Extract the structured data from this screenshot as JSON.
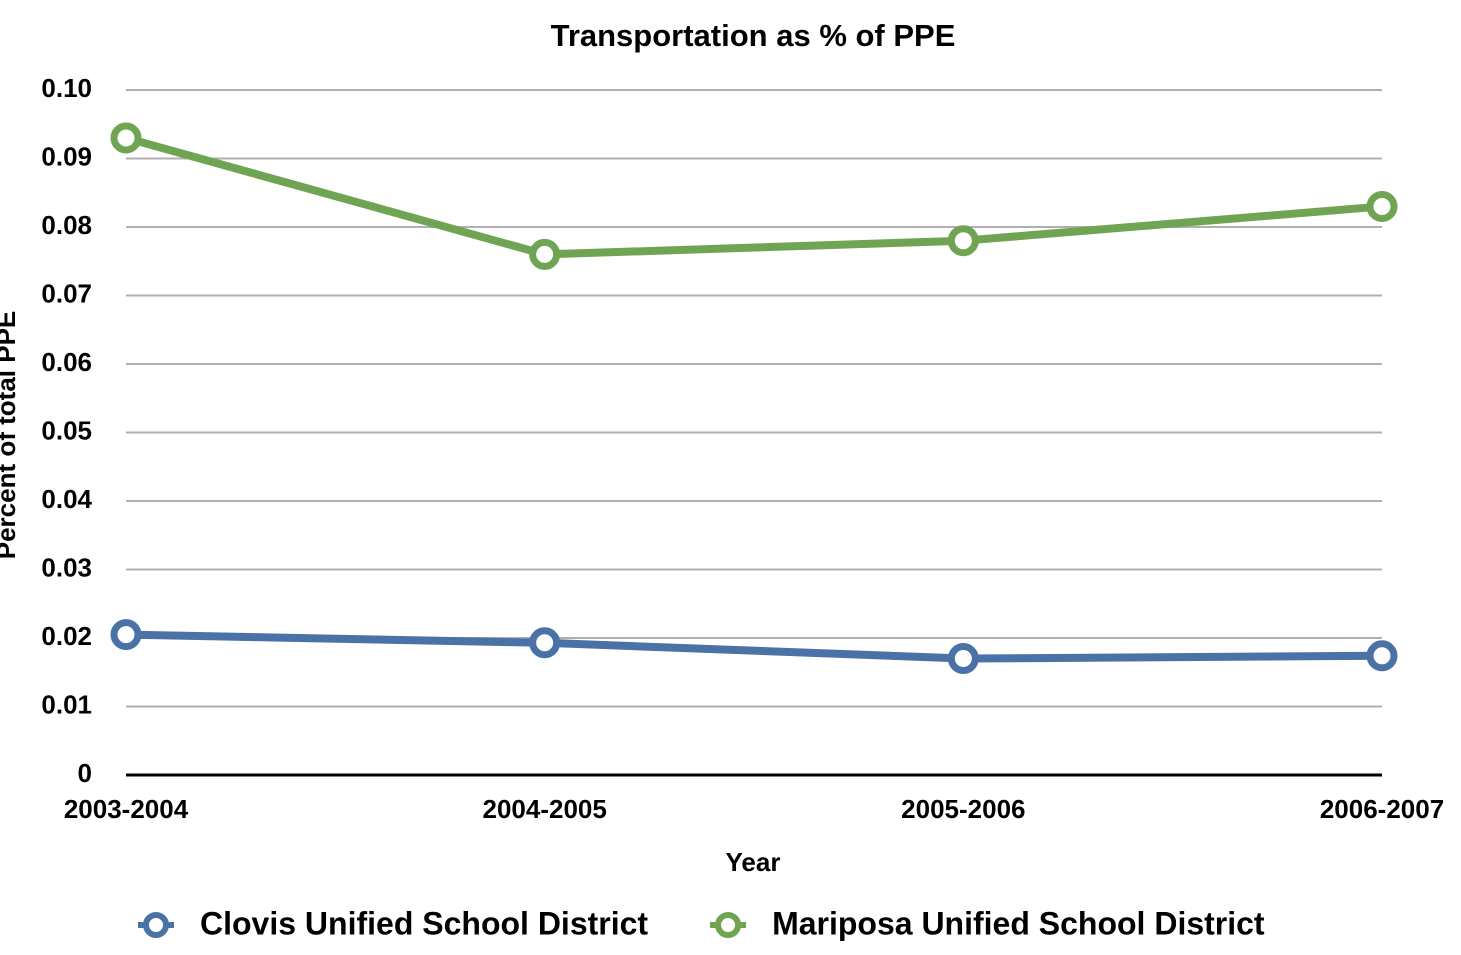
{
  "chart_data": {
    "type": "line",
    "title": "Transportation as % of PPE",
    "x_label": "Year",
    "y_label": "Percent of total PPE",
    "categories": [
      "2003-2004",
      "2004-2005",
      "2005-2006",
      "2006-2007"
    ],
    "series": [
      {
        "name": "Clovis Unified School District",
        "color": "#4a72a6",
        "values": [
          0.0205,
          0.0193,
          0.017,
          0.0174
        ]
      },
      {
        "name": "Mariposa Unified School District",
        "color": "#6fa552",
        "values": [
          0.093,
          0.076,
          0.078,
          0.083
        ]
      }
    ],
    "ylim": [
      0,
      0.1
    ],
    "yticks": [
      0,
      0.01,
      0.02,
      0.03,
      0.04,
      0.05,
      0.06,
      0.07,
      0.08,
      0.09,
      {
        "value": 0.1,
        "label": "0.10"
      }
    ],
    "grid": true,
    "legend": "bottom"
  }
}
